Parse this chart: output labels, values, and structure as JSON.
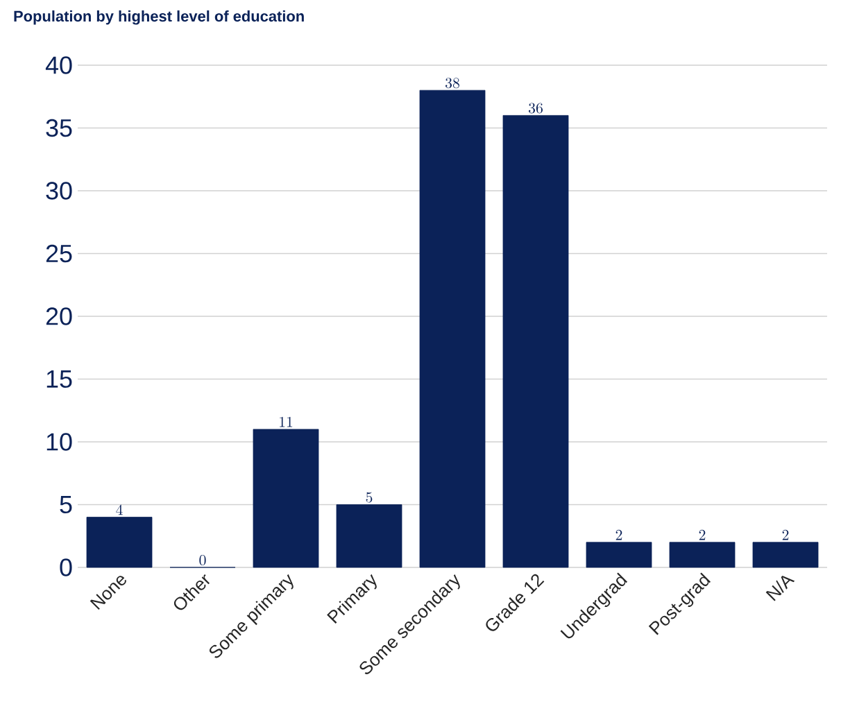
{
  "chart_data": {
    "type": "bar",
    "title": "Population by highest level of education",
    "categories": [
      "None",
      "Other",
      "Some primary",
      "Primary",
      "Some secondary",
      "Grade 12",
      "Undergrad",
      "Post-grad",
      "N/A"
    ],
    "values": [
      4,
      0,
      11,
      5,
      38,
      36,
      2,
      2,
      2
    ],
    "color": "#0b2258",
    "ylim": [
      0,
      40
    ],
    "yticks": [
      0,
      5,
      10,
      15,
      20,
      25,
      30,
      35,
      40
    ],
    "grid": "y",
    "data_labels": true
  }
}
